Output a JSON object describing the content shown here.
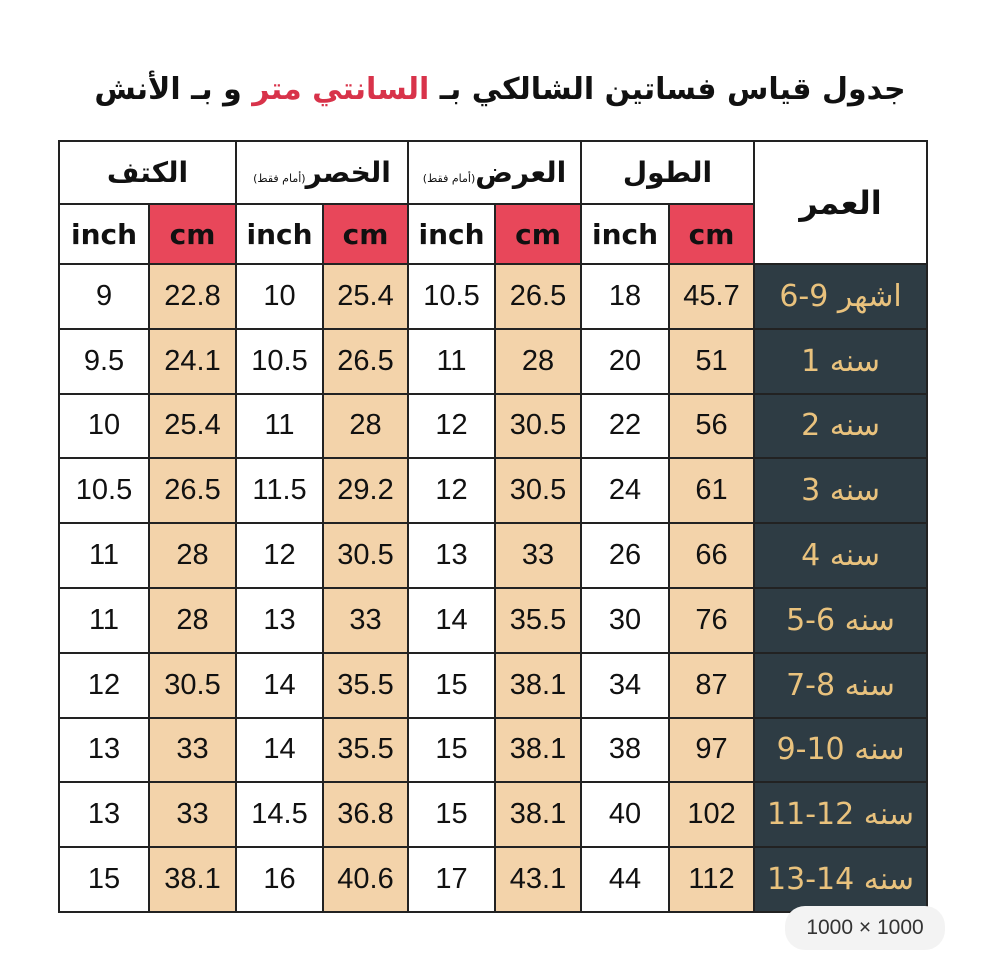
{
  "title": {
    "part1": "جدول قياس فساتين الشالكي بـ",
    "highlight": "السانتي متر",
    "part2": "و بـ الأنش"
  },
  "table": {
    "age_header": "العمر",
    "groups": [
      {
        "title": "الطول"
      },
      {
        "title": "العرض",
        "note": "(أمام فقط)"
      },
      {
        "title": "الخصر",
        "note": "(أمام فقط)"
      },
      {
        "title": "الكتف"
      }
    ],
    "subheaders": [
      "cm",
      "inch",
      "cm",
      "inch",
      "cm",
      "inch",
      "cm",
      "inch"
    ],
    "rows": [
      {
        "age": "6-9 اشهر",
        "values": [
          45.7,
          18,
          26.5,
          10.5,
          25.4,
          10,
          22.8,
          9
        ]
      },
      {
        "age": "1 سنه",
        "values": [
          51,
          20,
          28,
          11,
          26.5,
          10.5,
          24.1,
          9.5
        ]
      },
      {
        "age": "2 سنه",
        "values": [
          56,
          22,
          30.5,
          12,
          28,
          11,
          25.4,
          10
        ]
      },
      {
        "age": "3 سنه",
        "values": [
          61,
          24,
          30.5,
          12,
          29.2,
          11.5,
          26.5,
          10.5
        ]
      },
      {
        "age": "4 سنه",
        "values": [
          66,
          26,
          33,
          13,
          30.5,
          12,
          28,
          11
        ]
      },
      {
        "age": "5-6 سنه",
        "values": [
          76,
          30,
          35.5,
          14,
          33,
          13,
          28,
          11
        ]
      },
      {
        "age": "7-8 سنه",
        "values": [
          87,
          34,
          38.1,
          15,
          35.5,
          14,
          30.5,
          12
        ]
      },
      {
        "age": "9-10 سنه",
        "values": [
          97,
          38,
          38.1,
          15,
          35.5,
          14,
          33,
          13
        ]
      },
      {
        "age": "11-12 سنه",
        "values": [
          102,
          40,
          38.1,
          15,
          36.8,
          14.5,
          33,
          13
        ]
      },
      {
        "age": "13-14 سنه",
        "values": [
          112,
          44,
          43.1,
          17,
          40.6,
          16,
          38.1,
          15
        ]
      }
    ]
  },
  "badge": "1000 × 1000"
}
